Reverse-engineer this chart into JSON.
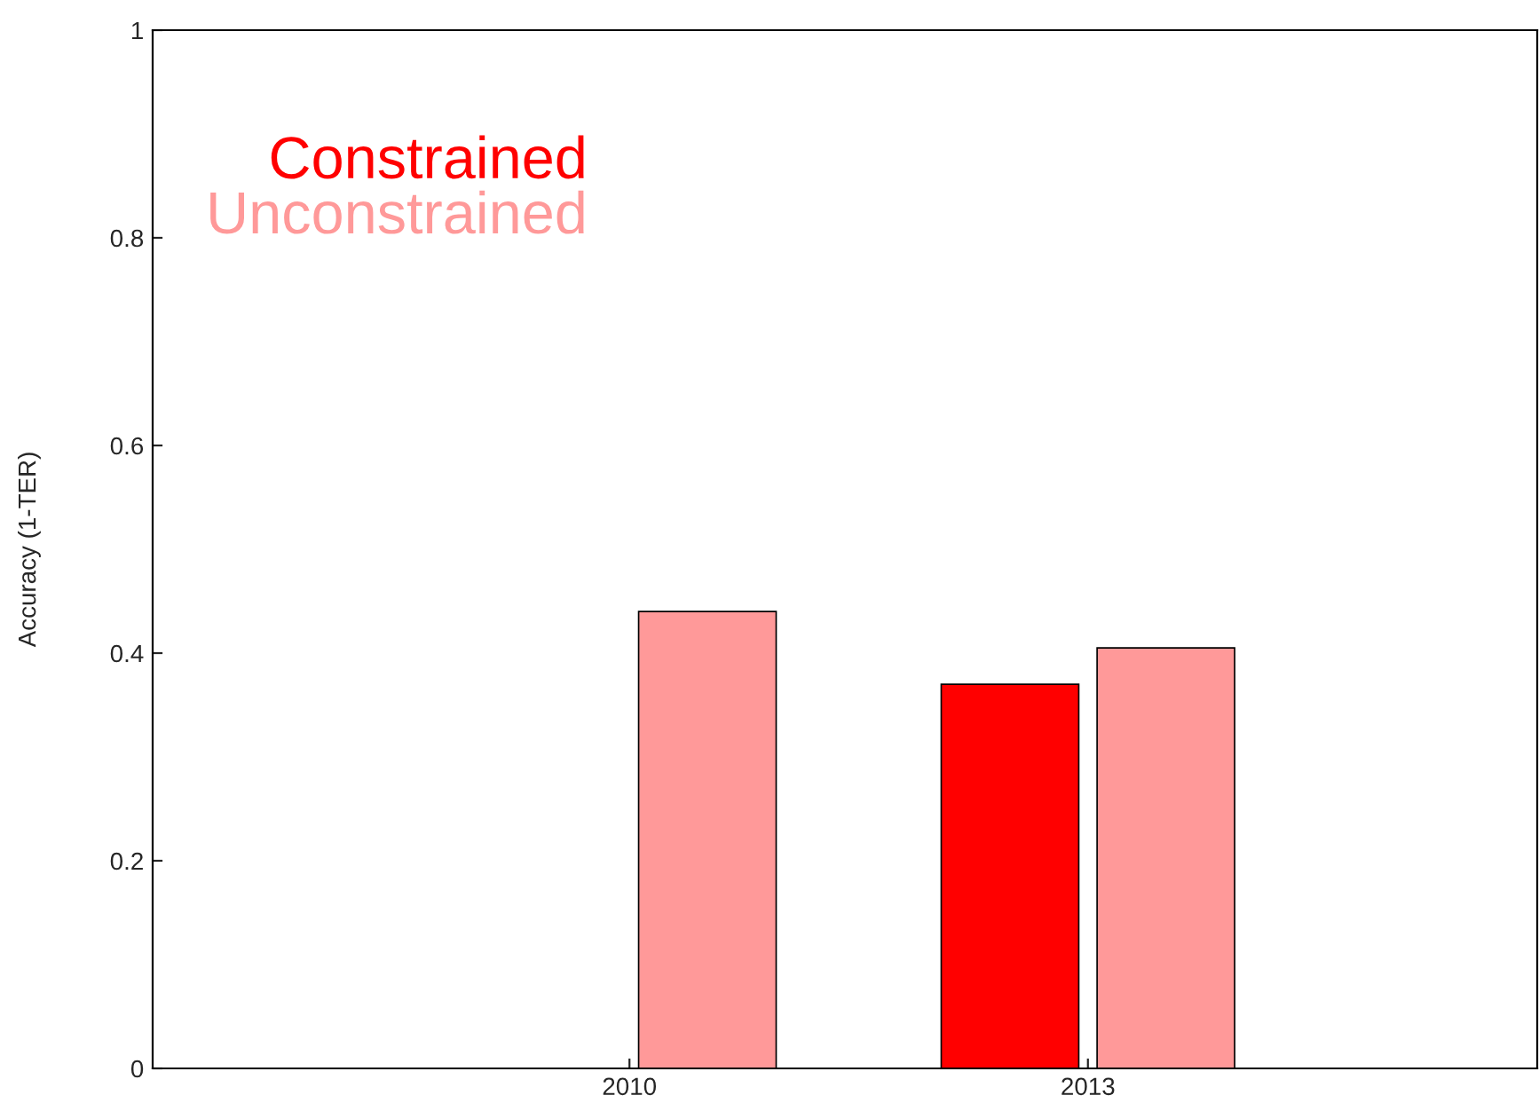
{
  "chart_data": {
    "type": "bar",
    "ylabel": "Accuracy (1-TER)",
    "categories": [
      "2010",
      "2013"
    ],
    "series": [
      {
        "name": "Constrained",
        "color": "#ff0000",
        "values": [
          null,
          0.37
        ]
      },
      {
        "name": "Unconstrained",
        "color": "#ff9999",
        "values": [
          0.44,
          0.405
        ]
      }
    ],
    "ylim": [
      0,
      1
    ],
    "yticks": [
      0,
      0.2,
      0.4,
      0.6,
      0.8,
      1
    ],
    "legend": "top left",
    "grid": false
  }
}
